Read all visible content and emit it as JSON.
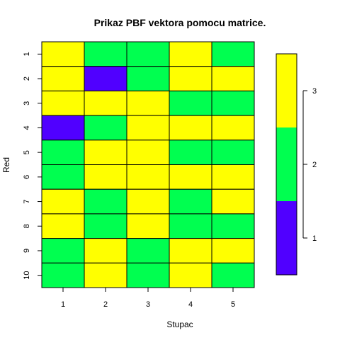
{
  "chart_data": {
    "type": "heatmap",
    "title": "Prikaz PBF vektora pomocu matrice.",
    "xlabel": "Stupac",
    "ylabel": "Red",
    "x_categories": [
      "1",
      "2",
      "3",
      "4",
      "5"
    ],
    "y_categories": [
      "1",
      "2",
      "3",
      "4",
      "5",
      "6",
      "7",
      "8",
      "9",
      "10"
    ],
    "values": [
      [
        3,
        2,
        2,
        3,
        2
      ],
      [
        3,
        1,
        2,
        3,
        3
      ],
      [
        3,
        3,
        3,
        2,
        2
      ],
      [
        1,
        2,
        3,
        3,
        3
      ],
      [
        2,
        3,
        3,
        2,
        2
      ],
      [
        2,
        3,
        3,
        3,
        3
      ],
      [
        3,
        2,
        3,
        2,
        3
      ],
      [
        3,
        2,
        3,
        2,
        2
      ],
      [
        2,
        3,
        2,
        3,
        3
      ],
      [
        2,
        3,
        2,
        3,
        2
      ]
    ],
    "color_scale": {
      "1": "#5000FF",
      "2": "#00FF50",
      "3": "#FFFF00"
    },
    "colorbar": {
      "range": [
        0.5,
        3.5
      ],
      "ticks": [
        1,
        2,
        3
      ]
    },
    "grid": false
  }
}
